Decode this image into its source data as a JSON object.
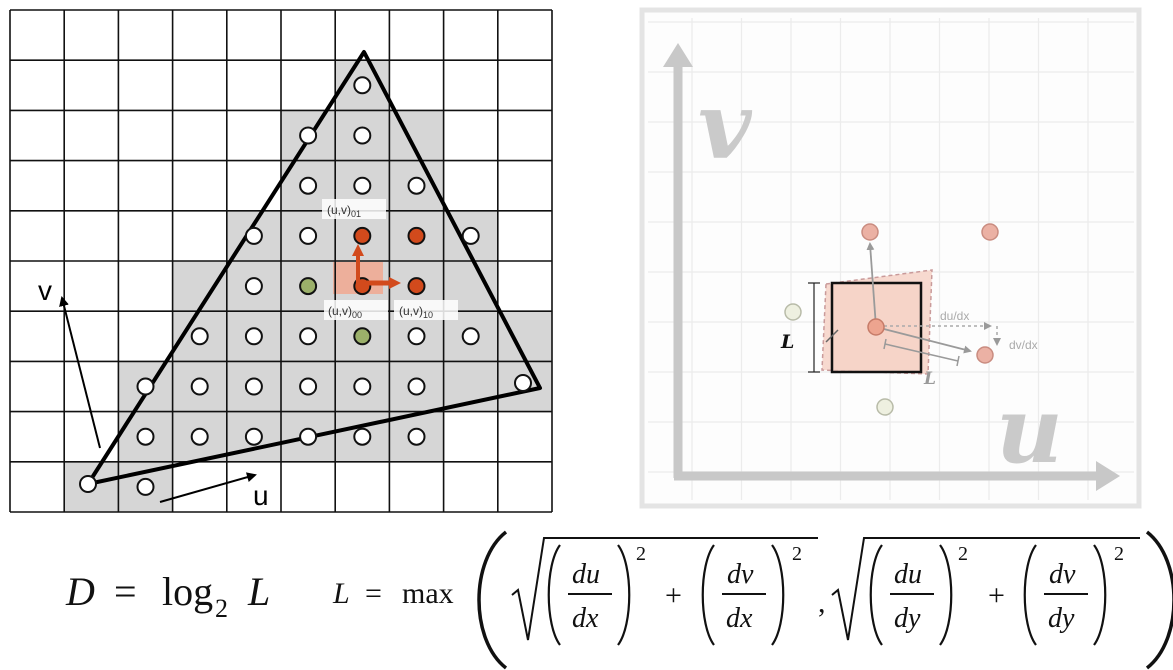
{
  "left_panel": {
    "axis_v": "v",
    "axis_u": "u",
    "label_uv01": "(u,v)01",
    "label_uv00": "(u,v)00",
    "label_uv10": "(u,v)10",
    "sub01": "01",
    "sub00": "00",
    "sub10": "10",
    "uv_prefix": "(u,v)"
  },
  "right_panel": {
    "axis_v": "v",
    "axis_u": "u",
    "label_L_side": "L",
    "label_L_diag": "L",
    "label_dudx": "du/dx",
    "label_dvdx": "dv/dx"
  },
  "formula": {
    "D": "D",
    "eq": "=",
    "log": "log",
    "log_base": "2",
    "L": "L",
    "max": "max",
    "du": "du",
    "dv": "dv",
    "dx": "dx",
    "dy": "dy",
    "pow": "2",
    "comma": ","
  },
  "colors": {
    "grid_line": "#111111",
    "coverage_fill": "#d6d6d6",
    "sample_red": "#d24a1c",
    "sample_green": "#9bb06a",
    "right_panel_grid": "#ececec",
    "right_panel_axes": "#c8c8c8",
    "footprint_fill": "#f6d6cc"
  }
}
